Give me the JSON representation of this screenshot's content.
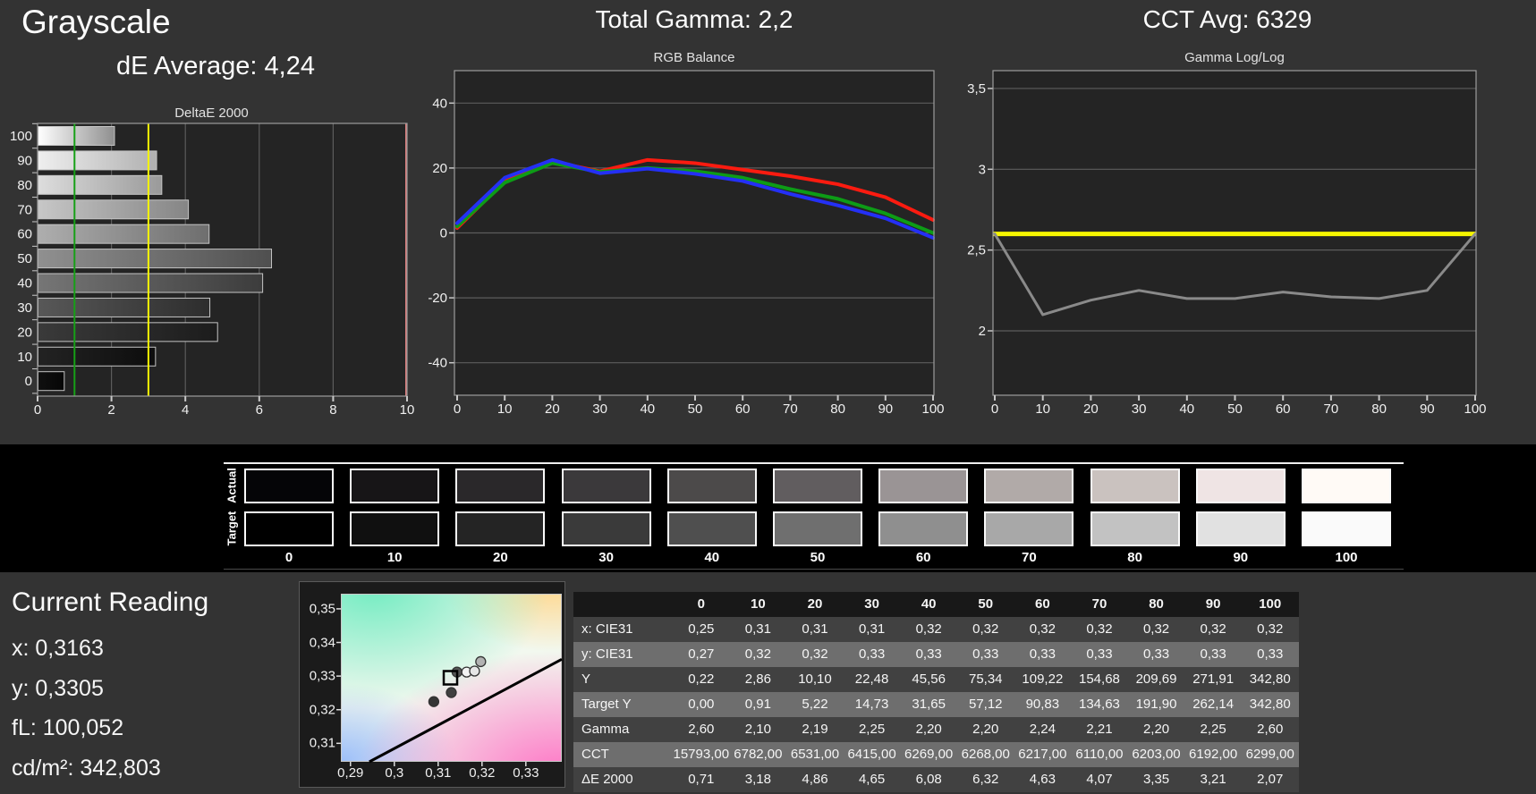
{
  "page": {
    "bg": "#333333",
    "band_bg": "#000000",
    "chart_bg": "#242424",
    "grid_color": "#5c5c5c",
    "chart_border_color": "#9c9c9c",
    "tick_color": "#c8c8c8",
    "text_color": "#f2f2f2"
  },
  "header": {
    "section_title": "Grayscale",
    "de_average": "dE Average: 4,24",
    "total_gamma": "Total Gamma: 2,2",
    "cct_avg": "CCT Avg: 6329"
  },
  "chart_data": [
    {
      "id": "deltae2000",
      "type": "bar",
      "orientation": "horizontal",
      "title": "DeltaE 2000",
      "categories": [
        100,
        90,
        80,
        70,
        60,
        50,
        40,
        30,
        20,
        10,
        0
      ],
      "values": [
        2.07,
        3.21,
        3.35,
        4.07,
        4.63,
        6.32,
        6.08,
        4.65,
        4.86,
        3.18,
        0.71
      ],
      "xlim": [
        0,
        10
      ],
      "xticks": [
        0,
        2,
        4,
        6,
        8,
        10
      ],
      "bar_border": "#c4c4c4",
      "reference_lines": [
        {
          "name": "target-good",
          "value": 1,
          "color": "#16a016"
        },
        {
          "name": "target-warn",
          "value": 3,
          "color": "#f5f500"
        },
        {
          "name": "scale-max",
          "value": 10,
          "color": "#d97b7b"
        }
      ],
      "bar_gradients": [
        [
          "#ffffff",
          "#8f8f8f"
        ],
        [
          "#efefef",
          "#b0b0b0"
        ],
        [
          "#dddddd",
          "#9a9a9a"
        ],
        [
          "#c7c7c7",
          "#858585"
        ],
        [
          "#aeaeae",
          "#6e6e6e"
        ],
        [
          "#909090",
          "#4f4f4f"
        ],
        [
          "#767676",
          "#3c3c3c"
        ],
        [
          "#585858",
          "#2d2d2d"
        ],
        [
          "#3a3a3a",
          "#1c1c1c"
        ],
        [
          "#232323",
          "#0d0d0d"
        ],
        [
          "#101010",
          "#060606"
        ]
      ]
    },
    {
      "id": "rgb_balance",
      "type": "line",
      "title": "RGB Balance",
      "x": [
        0,
        10,
        20,
        30,
        40,
        50,
        60,
        70,
        80,
        90,
        100
      ],
      "ylim": [
        -50,
        50
      ],
      "yticks": [
        40,
        20,
        0,
        -20,
        -40
      ],
      "xticks": [
        0,
        10,
        20,
        30,
        40,
        50,
        60,
        70,
        80,
        90,
        100
      ],
      "series": [
        {
          "name": "Red",
          "color": "#fb1b10",
          "values": [
            1.5,
            16,
            22,
            19,
            22.5,
            21.5,
            19.5,
            17.5,
            15,
            11,
            4
          ]
        },
        {
          "name": "Green",
          "color": "#0d9c16",
          "values": [
            2,
            15.5,
            21.5,
            18.8,
            20,
            19,
            17,
            13.5,
            10.5,
            6,
            0
          ]
        },
        {
          "name": "Blue",
          "color": "#2430f5",
          "values": [
            3,
            17,
            22.5,
            18.4,
            19.8,
            18.2,
            16,
            12,
            8.5,
            4.5,
            -1.5
          ]
        }
      ]
    },
    {
      "id": "gamma_loglog",
      "type": "line",
      "title": "Gamma Log/Log",
      "x": [
        0,
        10,
        20,
        30,
        40,
        50,
        60,
        70,
        80,
        90,
        100
      ],
      "ylim": [
        1.6,
        3.61
      ],
      "yticks": [
        3.5,
        3,
        2.5,
        2
      ],
      "ytick_labels": [
        "3,5",
        "3",
        "2,5",
        "2"
      ],
      "xticks": [
        0,
        10,
        20,
        30,
        40,
        50,
        60,
        70,
        80,
        90,
        100
      ],
      "target_line": {
        "name": "gamma-target",
        "value": 2.6,
        "color": "#f5f500"
      },
      "series": [
        {
          "name": "Gamma",
          "color": "#8a8a8a",
          "values": [
            2.6,
            2.1,
            2.19,
            2.25,
            2.2,
            2.2,
            2.24,
            2.21,
            2.2,
            2.25,
            2.6
          ]
        }
      ]
    },
    {
      "id": "cie_chromaticity",
      "type": "scatter",
      "xlim": [
        0.2878,
        0.3382
      ],
      "ylim": [
        0.3045,
        0.3545
      ],
      "xtick_labels": [
        "0,29",
        "0,3",
        "0,31",
        "0,32",
        "0,33"
      ],
      "xtick_values": [
        0.29,
        0.3,
        0.31,
        0.32,
        0.33
      ],
      "ytick_labels": [
        "0,35",
        "0,34",
        "0,33",
        "0,32",
        "0,31"
      ],
      "ytick_values": [
        0.35,
        0.34,
        0.33,
        0.32,
        0.31
      ],
      "locus": [
        [
          0.2943,
          0.3045
        ],
        [
          0.3382,
          0.335
        ]
      ],
      "target_square": {
        "x": 0.3128,
        "y": 0.3295
      },
      "points": [
        {
          "x": 0.309,
          "y": 0.3224,
          "fill": "#353535"
        },
        {
          "x": 0.313,
          "y": 0.3251,
          "fill": "#404040"
        },
        {
          "x": 0.3143,
          "y": 0.3312,
          "fill": "#555555"
        },
        {
          "x": 0.3165,
          "y": 0.3312,
          "fill": "#f2f2f2"
        },
        {
          "x": 0.3183,
          "y": 0.3315,
          "fill": "#e6e6e6"
        },
        {
          "x": 0.3197,
          "y": 0.3343,
          "fill": "#b2b2b2"
        }
      ]
    }
  ],
  "swatches": {
    "row_labels": [
      "Actual",
      "Target"
    ],
    "levels": [
      "0",
      "10",
      "20",
      "30",
      "40",
      "50",
      "60",
      "70",
      "80",
      "90",
      "100"
    ],
    "actual_colors": [
      "#050507",
      "#171517",
      "#2a282a",
      "#3b393b",
      "#4c4a4a",
      "#615d5f",
      "#9a9495",
      "#b1aaa8",
      "#cac2bf",
      "#efe4e4",
      "#fffaf6"
    ],
    "target_colors": [
      "#000000",
      "#101010",
      "#242424",
      "#3a3a3a",
      "#4f4f4f",
      "#6f6f6f",
      "#8f8f8f",
      "#a8a8a8",
      "#c2c2c2",
      "#e1e1e1",
      "#fafafa"
    ]
  },
  "current_reading": {
    "title": "Current Reading",
    "lines": [
      "x: 0,3163",
      "y: 0,3305",
      "fL: 100,052",
      "cd/m²: 342,803"
    ]
  },
  "table": {
    "columns": [
      "0",
      "10",
      "20",
      "30",
      "40",
      "50",
      "60",
      "70",
      "80",
      "90",
      "100"
    ],
    "rows": [
      {
        "label": "x: CIE31",
        "values": [
          "0,25",
          "0,31",
          "0,31",
          "0,31",
          "0,32",
          "0,32",
          "0,32",
          "0,32",
          "0,32",
          "0,32",
          "0,32"
        ]
      },
      {
        "label": "y: CIE31",
        "values": [
          "0,27",
          "0,32",
          "0,32",
          "0,33",
          "0,33",
          "0,33",
          "0,33",
          "0,33",
          "0,33",
          "0,33",
          "0,33"
        ]
      },
      {
        "label": "Y",
        "values": [
          "0,22",
          "2,86",
          "10,10",
          "22,48",
          "45,56",
          "75,34",
          "109,22",
          "154,68",
          "209,69",
          "271,91",
          "342,80"
        ]
      },
      {
        "label": "Target Y",
        "values": [
          "0,00",
          "0,91",
          "5,22",
          "14,73",
          "31,65",
          "57,12",
          "90,83",
          "134,63",
          "191,90",
          "262,14",
          "342,80"
        ]
      },
      {
        "label": "Gamma Log/Log",
        "values": [
          "2,60",
          "2,10",
          "2,19",
          "2,25",
          "2,20",
          "2,20",
          "2,24",
          "2,21",
          "2,20",
          "2,25",
          "2,60"
        ]
      },
      {
        "label": "CCT",
        "values": [
          "15793,00",
          "6782,00",
          "6531,00",
          "6415,00",
          "6269,00",
          "6268,00",
          "6217,00",
          "6110,00",
          "6203,00",
          "6192,00",
          "6299,00"
        ]
      },
      {
        "label": "ΔE 2000",
        "values": [
          "0,71",
          "3,18",
          "4,86",
          "4,65",
          "6,08",
          "6,32",
          "4,63",
          "4,07",
          "3,35",
          "3,21",
          "2,07"
        ]
      }
    ]
  }
}
